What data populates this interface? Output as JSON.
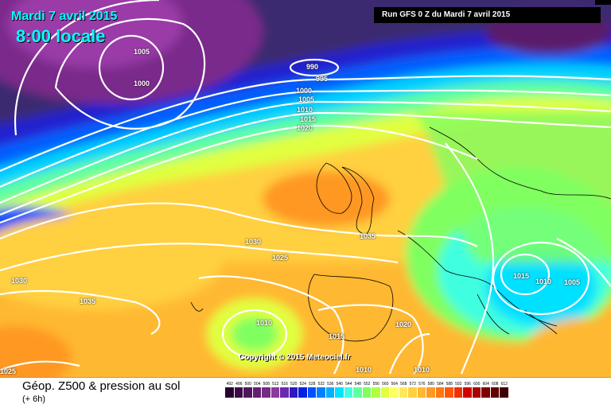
{
  "header": {
    "date": "Mardi 7 avril 2015",
    "time": "8:00 locale",
    "run": "Run GFS 0 Z du Mardi 7 avril 2015"
  },
  "isobars": [
    {
      "id": "h1",
      "text": "1005"
    },
    {
      "id": "h2",
      "text": "1000"
    },
    {
      "id": "h3",
      "text": "990"
    },
    {
      "id": "h4",
      "text": "995"
    },
    {
      "id": "h5",
      "text": "1000"
    },
    {
      "id": "h6",
      "text": "1005"
    },
    {
      "id": "h7",
      "text": "1010"
    },
    {
      "id": "h8",
      "text": "1015"
    },
    {
      "id": "h9",
      "text": "1020"
    },
    {
      "id": "h10",
      "text": "1035"
    },
    {
      "id": "h11",
      "text": "1030"
    },
    {
      "id": "h12",
      "text": "1025"
    },
    {
      "id": "h13",
      "text": "1030"
    },
    {
      "id": "h14",
      "text": "1035"
    },
    {
      "id": "h15",
      "text": "1010"
    },
    {
      "id": "h16",
      "text": "1015"
    },
    {
      "id": "h17",
      "text": "1020"
    },
    {
      "id": "h18",
      "text": "1015"
    },
    {
      "id": "h19",
      "text": "1010"
    },
    {
      "id": "h20",
      "text": "1005"
    },
    {
      "id": "h21",
      "text": "1025"
    },
    {
      "id": "h22",
      "text": "1010"
    },
    {
      "id": "h23",
      "text": "1010"
    }
  ],
  "copyright": "Copyright © 2015 Meteociel.fr",
  "legend": {
    "title": "Géop. Z500 & pression au sol",
    "subtitle": "(+ 6h)",
    "scale": [
      {
        "v": "492",
        "c": "#2a0030"
      },
      {
        "v": "496",
        "c": "#3d0a45"
      },
      {
        "v": "500",
        "c": "#50155a"
      },
      {
        "v": "504",
        "c": "#632070"
      },
      {
        "v": "508",
        "c": "#762b86"
      },
      {
        "v": "512",
        "c": "#8a3a9c"
      },
      {
        "v": "516",
        "c": "#6a2ab0"
      },
      {
        "v": "520",
        "c": "#3018c0"
      },
      {
        "v": "524",
        "c": "#0020e0"
      },
      {
        "v": "528",
        "c": "#0050ff"
      },
      {
        "v": "532",
        "c": "#0080ff"
      },
      {
        "v": "536",
        "c": "#00b0ff"
      },
      {
        "v": "540",
        "c": "#00e0ff"
      },
      {
        "v": "544",
        "c": "#40ffe0"
      },
      {
        "v": "548",
        "c": "#60ffa0"
      },
      {
        "v": "552",
        "c": "#80ff60"
      },
      {
        "v": "556",
        "c": "#b0ff40"
      },
      {
        "v": "560",
        "c": "#e0ff40"
      },
      {
        "v": "564",
        "c": "#ffff60"
      },
      {
        "v": "568",
        "c": "#ffe860"
      },
      {
        "v": "572",
        "c": "#ffd040"
      },
      {
        "v": "576",
        "c": "#ffb830"
      },
      {
        "v": "580",
        "c": "#ff9820"
      },
      {
        "v": "584",
        "c": "#ff7810"
      },
      {
        "v": "588",
        "c": "#ff5800"
      },
      {
        "v": "592",
        "c": "#f03000"
      },
      {
        "v": "596",
        "c": "#d00000"
      },
      {
        "v": "600",
        "c": "#a80000"
      },
      {
        "v": "604",
        "c": "#800000"
      },
      {
        "v": "608",
        "c": "#600000"
      },
      {
        "v": "612",
        "c": "#400000"
      }
    ]
  }
}
